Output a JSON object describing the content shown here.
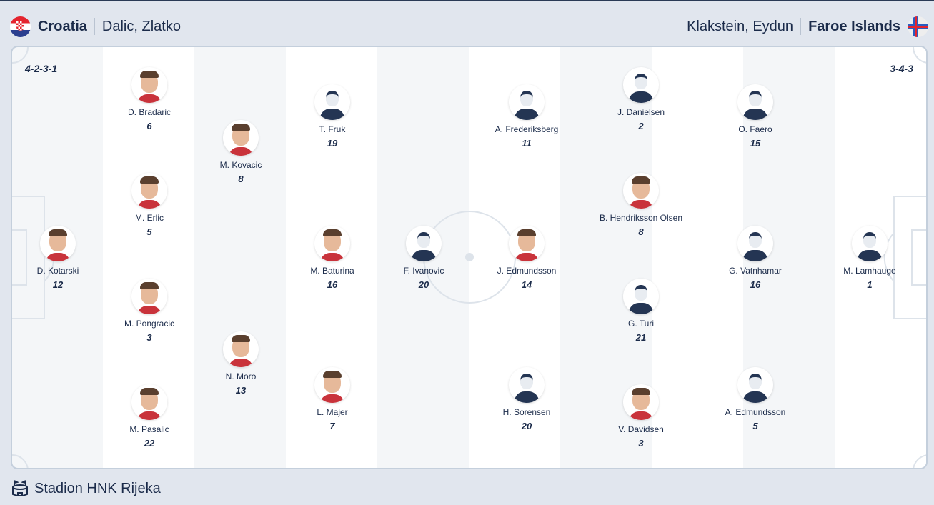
{
  "home": {
    "team": "Croatia",
    "coach": "Dalic, Zlatko",
    "formation": "4-2-3-1",
    "flag": "croatia-flag-icon"
  },
  "away": {
    "team": "Faroe Islands",
    "coach": "Klakstein, Eydun",
    "formation": "3-4-3",
    "flag": "faroe-islands-flag-icon"
  },
  "venue": "Stadion HNK Rijeka",
  "colors": {
    "text": "#1b2b4a",
    "background": "#e1e6ee",
    "stripe_light": "#f4f6f8"
  },
  "home_players": [
    {
      "name": "D. Kotarski",
      "number": "12",
      "photo": true
    },
    {
      "name": "D. Bradaric",
      "number": "6",
      "photo": true
    },
    {
      "name": "M. Erlic",
      "number": "5",
      "photo": true
    },
    {
      "name": "M. Pongracic",
      "number": "3",
      "photo": true
    },
    {
      "name": "M. Pasalic",
      "number": "22",
      "photo": true
    },
    {
      "name": "M. Kovacic",
      "number": "8",
      "photo": true
    },
    {
      "name": "N. Moro",
      "number": "13",
      "photo": true
    },
    {
      "name": "T. Fruk",
      "number": "19",
      "photo": false
    },
    {
      "name": "M. Baturina",
      "number": "16",
      "photo": true
    },
    {
      "name": "L. Majer",
      "number": "7",
      "photo": true
    },
    {
      "name": "F. Ivanovic",
      "number": "20",
      "photo": false
    }
  ],
  "away_players": [
    {
      "name": "A. Frederiksberg",
      "number": "11",
      "photo": false
    },
    {
      "name": "J. Edmundsson",
      "number": "14",
      "photo": true
    },
    {
      "name": "H. Sorensen",
      "number": "20",
      "photo": false
    },
    {
      "name": "J. Danielsen",
      "number": "2",
      "photo": false
    },
    {
      "name": "B. Hendriksson Olsen",
      "number": "8",
      "photo": true
    },
    {
      "name": "G. Turi",
      "number": "21",
      "photo": false
    },
    {
      "name": "V. Davidsen",
      "number": "3",
      "photo": true
    },
    {
      "name": "O. Faero",
      "number": "15",
      "photo": false
    },
    {
      "name": "G. Vatnhamar",
      "number": "16",
      "photo": false
    },
    {
      "name": "A. Edmundsson",
      "number": "5",
      "photo": false
    },
    {
      "name": "M. Lamhauge",
      "number": "1",
      "photo": false
    }
  ]
}
